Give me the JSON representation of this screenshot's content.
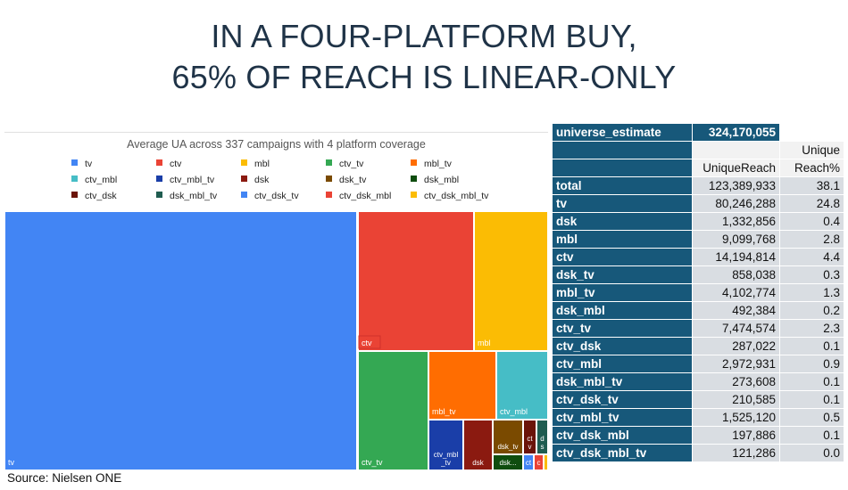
{
  "title": {
    "line1": "IN A FOUR-PLATFORM BUY,",
    "line2": "65% OF REACH IS LINEAR-ONLY"
  },
  "source": "Source: Nielsen ONE",
  "chart_data": {
    "type": "treemap",
    "title": "Average UA across 337 campaigns with 4 platform coverage",
    "legend_position": "top",
    "legend": [
      {
        "name": "tv",
        "color": "#4285f4"
      },
      {
        "name": "ctv",
        "color": "#ea4335"
      },
      {
        "name": "mbl",
        "color": "#fbbc04"
      },
      {
        "name": "ctv_tv",
        "color": "#34a853"
      },
      {
        "name": "mbl_tv",
        "color": "#ff6d01"
      },
      {
        "name": "ctv_mbl",
        "color": "#46bdc6"
      },
      {
        "name": "ctv_mbl_tv",
        "color": "#1a3ea8"
      },
      {
        "name": "dsk",
        "color": "#8b1a10"
      },
      {
        "name": "dsk_tv",
        "color": "#7a4a00"
      },
      {
        "name": "dsk_mbl",
        "color": "#0f4d0f"
      },
      {
        "name": "ctv_dsk",
        "color": "#6b1409"
      },
      {
        "name": "dsk_mbl_tv",
        "color": "#1f5c50"
      },
      {
        "name": "ctv_dsk_tv",
        "color": "#4285f4"
      },
      {
        "name": "ctv_dsk_mbl",
        "color": "#ea4335"
      },
      {
        "name": "ctv_dsk_mbl_tv",
        "color": "#fbbc04"
      }
    ],
    "cells": [
      {
        "label": "tv",
        "value": 80246288,
        "color": "#4285f4"
      },
      {
        "label": "ctv",
        "value": 14194814,
        "color": "#ea4335"
      },
      {
        "label": "mbl",
        "value": 9099768,
        "color": "#fbbc04"
      },
      {
        "label": "ctv_tv",
        "value": 7474574,
        "color": "#34a853"
      },
      {
        "label": "mbl_tv",
        "value": 4102774,
        "color": "#ff6d01"
      },
      {
        "label": "ctv_mbl",
        "value": 2972931,
        "color": "#46bdc6"
      },
      {
        "label": "ctv_mbl\n_tv",
        "value": 1525120,
        "color": "#1a3ea8"
      },
      {
        "label": "dsk",
        "value": 1332856,
        "color": "#8b1a10"
      },
      {
        "label": "dsk_tv",
        "value": 858038,
        "color": "#7a4a00"
      },
      {
        "label": "dsk...",
        "value": 492384,
        "color": "#0f4d0f"
      },
      {
        "label": "ct\nv",
        "value": 287022,
        "color": "#6b1409"
      },
      {
        "label": "d\ns",
        "value": 273608,
        "color": "#1f5c50"
      },
      {
        "label": "ct",
        "value": 210585,
        "color": "#4285f4"
      },
      {
        "label": "c",
        "value": 197886,
        "color": "#ea4335"
      },
      {
        "label": "",
        "value": 121286,
        "color": "#fbbc04"
      }
    ]
  },
  "table": {
    "header": {
      "label": "universe_estimate",
      "value": "324,170,055"
    },
    "col1_header": "UniqueReach",
    "col2_header_line1": "Unique",
    "col2_header_line2": "Reach%",
    "rows": [
      {
        "label": "total",
        "reach": "123,389,933",
        "pct": "38.1"
      },
      {
        "label": "tv",
        "reach": "80,246,288",
        "pct": "24.8"
      },
      {
        "label": "dsk",
        "reach": "1,332,856",
        "pct": "0.4"
      },
      {
        "label": "mbl",
        "reach": "9,099,768",
        "pct": "2.8"
      },
      {
        "label": "ctv",
        "reach": "14,194,814",
        "pct": "4.4"
      },
      {
        "label": "dsk_tv",
        "reach": "858,038",
        "pct": "0.3"
      },
      {
        "label": "mbl_tv",
        "reach": "4,102,774",
        "pct": "1.3"
      },
      {
        "label": "dsk_mbl",
        "reach": "492,384",
        "pct": "0.2"
      },
      {
        "label": "ctv_tv",
        "reach": "7,474,574",
        "pct": "2.3"
      },
      {
        "label": "ctv_dsk",
        "reach": "287,022",
        "pct": "0.1"
      },
      {
        "label": "ctv_mbl",
        "reach": "2,972,931",
        "pct": "0.9"
      },
      {
        "label": "dsk_mbl_tv",
        "reach": "273,608",
        "pct": "0.1"
      },
      {
        "label": "ctv_dsk_tv",
        "reach": "210,585",
        "pct": "0.1"
      },
      {
        "label": "ctv_mbl_tv",
        "reach": "1,525,120",
        "pct": "0.5"
      },
      {
        "label": "ctv_dsk_mbl",
        "reach": "197,886",
        "pct": "0.1"
      },
      {
        "label": "ctv_dsk_mbl_tv",
        "reach": "121,286",
        "pct": "0.0"
      }
    ]
  }
}
